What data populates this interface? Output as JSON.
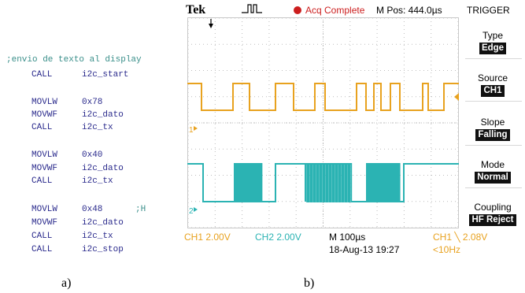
{
  "code": {
    "comment_line": ";envio de texto al display",
    "lines": [
      {
        "op": "CALL",
        "arg": "i2c_start",
        "cmt": ""
      },
      {
        "op": "MOVLW",
        "arg": "0x78",
        "cmt": ""
      },
      {
        "op": "MOVWF",
        "arg": "i2c_dato",
        "cmt": ""
      },
      {
        "op": "CALL",
        "arg": "i2c_tx",
        "cmt": ""
      },
      {
        "op": "MOVLW",
        "arg": "0x40",
        "cmt": ""
      },
      {
        "op": "MOVWF",
        "arg": "i2c_dato",
        "cmt": ""
      },
      {
        "op": "CALL",
        "arg": "i2c_tx",
        "cmt": ""
      },
      {
        "op": "MOVLW",
        "arg": "0x48",
        "cmt": ";H"
      },
      {
        "op": "MOVWF",
        "arg": "i2c_dato",
        "cmt": ""
      },
      {
        "op": "CALL",
        "arg": "i2c_tx",
        "cmt": ""
      },
      {
        "op": "CALL",
        "arg": "i2c_stop",
        "cmt": ""
      }
    ]
  },
  "labels": {
    "a": "a)",
    "b": "b)"
  },
  "scope": {
    "brand": "Tek",
    "status": "Acq Complete",
    "mpos": "M Pos: 444.0µs",
    "trigger_title": "TRIGGER",
    "menu": [
      {
        "title": "Type",
        "value": "Edge"
      },
      {
        "title": "Source",
        "value": "CH1"
      },
      {
        "title": "Slope",
        "value": "Falling"
      },
      {
        "title": "Mode",
        "value": "Normal"
      },
      {
        "title": "Coupling",
        "value": "HF Reject"
      }
    ],
    "ch1_marker": "1",
    "ch2_marker": "2",
    "ch1_scale": "CH1  2.00V",
    "ch2_scale": "CH2  2.00V",
    "timebase": "M 100µs",
    "date": "18-Aug-13 19:27",
    "trig_readout": "CH1 ╲ 2.08V",
    "freq": "<10Hz",
    "colors": {
      "ch1": "#e8a21f",
      "ch2": "#2bb3b3",
      "status": "#cc1e1e"
    }
  }
}
